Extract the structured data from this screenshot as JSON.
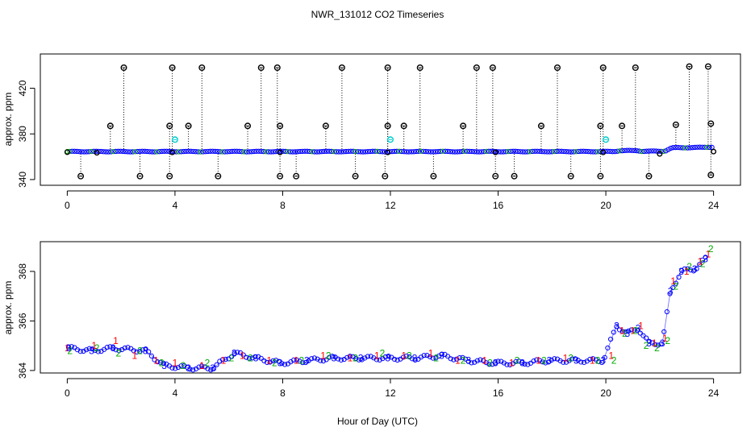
{
  "title": "NWR_131012  CO2 Timeseries",
  "shared_xlabel": "Hour of Day (UTC)",
  "colors": {
    "outlier": "#000000",
    "flag": "#00cccc",
    "ch1": "#ff0000",
    "ch2": "#00aa00",
    "ch3": "#0000ff",
    "box": "#000000"
  },
  "chart_data": [
    {
      "id": "top",
      "type": "scatter",
      "title": "NWR_131012  CO2 Timeseries",
      "xlabel": "",
      "ylabel": "approx. ppm",
      "xlim": [
        -1.0,
        25.0
      ],
      "ylim": [
        335,
        450
      ],
      "xticks": [
        0,
        4,
        8,
        12,
        16,
        20,
        24
      ],
      "xtick_labels": [
        "0",
        "4",
        "8",
        "12",
        "16",
        "20",
        "24"
      ],
      "yticks": [
        340,
        380,
        420
      ],
      "ytick_labels": [
        "340",
        "380",
        "420"
      ],
      "baseline": [
        [
          0,
          364.7
        ],
        [
          20.3,
          364.7
        ],
        [
          20.5,
          365.5
        ],
        [
          21.2,
          365.5
        ],
        [
          21.3,
          365.0
        ],
        [
          22.0,
          365.0
        ],
        [
          22.2,
          365.2
        ],
        [
          22.4,
          367.5
        ],
        [
          22.5,
          368.0
        ],
        [
          23.5,
          368.3
        ],
        [
          23.9,
          368.6
        ]
      ],
      "outliers_high": [
        [
          2.1,
          438
        ],
        [
          3.9,
          438
        ],
        [
          5.0,
          438
        ],
        [
          7.2,
          438
        ],
        [
          7.8,
          438
        ],
        [
          10.2,
          438
        ],
        [
          11.9,
          438
        ],
        [
          13.1,
          438
        ],
        [
          15.2,
          438
        ],
        [
          15.8,
          438
        ],
        [
          18.2,
          438
        ],
        [
          19.9,
          438
        ],
        [
          21.1,
          438
        ],
        [
          23.1,
          439
        ],
        [
          23.8,
          439
        ]
      ],
      "outliers_mid": [
        [
          1.6,
          387
        ],
        [
          3.8,
          387
        ],
        [
          4.5,
          387
        ],
        [
          6.7,
          387
        ],
        [
          7.9,
          387
        ],
        [
          9.6,
          387
        ],
        [
          11.9,
          387
        ],
        [
          12.5,
          387
        ],
        [
          14.7,
          387
        ],
        [
          17.6,
          387
        ],
        [
          19.8,
          387
        ],
        [
          20.6,
          387
        ],
        [
          22.6,
          388
        ],
        [
          23.9,
          389
        ]
      ],
      "outliers_low": [
        [
          0.5,
          343
        ],
        [
          2.7,
          343
        ],
        [
          3.8,
          343
        ],
        [
          5.6,
          343
        ],
        [
          7.9,
          343
        ],
        [
          8.5,
          343
        ],
        [
          10.7,
          343
        ],
        [
          11.8,
          343
        ],
        [
          13.6,
          343
        ],
        [
          15.9,
          343
        ],
        [
          16.6,
          343
        ],
        [
          18.7,
          343
        ],
        [
          19.8,
          343
        ],
        [
          21.6,
          343
        ],
        [
          23.9,
          344
        ]
      ],
      "flagged": [
        [
          4.0,
          375
        ],
        [
          12.0,
          375
        ],
        [
          20.0,
          375
        ]
      ],
      "dark_markers": [
        [
          0.0,
          364
        ],
        [
          1.1,
          363.5
        ],
        [
          3.9,
          363.8
        ],
        [
          7.9,
          363.8
        ],
        [
          11.9,
          363.8
        ],
        [
          15.9,
          363.8
        ],
        [
          19.9,
          363.8
        ],
        [
          22.0,
          362.5
        ],
        [
          24.0,
          364.5
        ]
      ]
    },
    {
      "id": "bottom",
      "type": "scatter",
      "title": "",
      "xlabel": "Hour of Day (UTC)",
      "ylabel": "approx. ppm",
      "xlim": [
        -1.0,
        25.0
      ],
      "ylim": [
        363.9,
        369.2
      ],
      "xticks": [
        0,
        4,
        8,
        12,
        16,
        20,
        24
      ],
      "xtick_labels": [
        "0",
        "4",
        "8",
        "12",
        "16",
        "20",
        "24"
      ],
      "yticks": [
        364,
        366,
        368
      ],
      "ytick_labels": [
        "364",
        "366",
        "368"
      ],
      "series": [
        {
          "name": "1",
          "values": [
            [
              0.0,
              364.9
            ],
            [
              1.0,
              365.0
            ],
            [
              1.8,
              365.2
            ],
            [
              2.5,
              364.6
            ],
            [
              3.3,
              364.4
            ],
            [
              4.0,
              364.3
            ],
            [
              5.0,
              364.2
            ],
            [
              5.8,
              364.4
            ],
            [
              6.5,
              364.6
            ],
            [
              7.5,
              364.4
            ],
            [
              8.5,
              364.4
            ],
            [
              9.5,
              364.6
            ],
            [
              10.5,
              364.5
            ],
            [
              11.5,
              364.6
            ],
            [
              12.5,
              364.6
            ],
            [
              13.5,
              364.7
            ],
            [
              14.5,
              364.4
            ],
            [
              15.5,
              364.4
            ],
            [
              16.5,
              364.3
            ],
            [
              17.5,
              364.4
            ],
            [
              18.5,
              364.5
            ],
            [
              19.5,
              364.4
            ],
            [
              20.2,
              364.6
            ],
            [
              20.6,
              365.6
            ],
            [
              21.0,
              365.6
            ],
            [
              21.3,
              365.8
            ],
            [
              21.8,
              365.1
            ],
            [
              22.2,
              365.3
            ],
            [
              22.5,
              367.6
            ],
            [
              23.0,
              368.0
            ],
            [
              23.5,
              368.4
            ],
            [
              23.8,
              368.7
            ]
          ]
        },
        {
          "name": "2",
          "values": [
            [
              0.1,
              364.8
            ],
            [
              1.1,
              364.9
            ],
            [
              1.9,
              364.7
            ],
            [
              2.7,
              364.8
            ],
            [
              3.5,
              364.3
            ],
            [
              4.3,
              364.2
            ],
            [
              5.2,
              364.3
            ],
            [
              6.1,
              364.5
            ],
            [
              6.8,
              364.5
            ],
            [
              7.7,
              364.3
            ],
            [
              8.7,
              364.4
            ],
            [
              9.7,
              364.6
            ],
            [
              10.7,
              364.5
            ],
            [
              11.7,
              364.7
            ],
            [
              12.7,
              364.6
            ],
            [
              13.7,
              364.5
            ],
            [
              14.7,
              364.4
            ],
            [
              15.7,
              364.3
            ],
            [
              16.7,
              364.4
            ],
            [
              17.7,
              364.4
            ],
            [
              18.7,
              364.5
            ],
            [
              19.7,
              364.4
            ],
            [
              20.3,
              364.4
            ],
            [
              20.7,
              365.5
            ],
            [
              21.1,
              365.6
            ],
            [
              21.5,
              365.0
            ],
            [
              21.9,
              364.9
            ],
            [
              22.3,
              365.2
            ],
            [
              22.6,
              367.4
            ],
            [
              23.1,
              368.2
            ],
            [
              23.6,
              368.3
            ],
            [
              23.9,
              368.9
            ]
          ]
        },
        {
          "name": "3",
          "values": [
            [
              0.05,
              364.9
            ],
            [
              0.9,
              364.8
            ],
            [
              1.7,
              364.9
            ],
            [
              2.9,
              364.8
            ],
            [
              3.6,
              364.2
            ],
            [
              4.5,
              364.1
            ],
            [
              5.4,
              364.1
            ],
            [
              6.2,
              364.7
            ],
            [
              7.0,
              364.5
            ],
            [
              7.9,
              364.3
            ],
            [
              8.9,
              364.4
            ],
            [
              9.9,
              364.5
            ],
            [
              10.9,
              364.5
            ],
            [
              11.9,
              364.5
            ],
            [
              12.9,
              364.5
            ],
            [
              13.9,
              364.6
            ],
            [
              14.9,
              364.4
            ],
            [
              15.9,
              364.3
            ],
            [
              16.9,
              364.3
            ],
            [
              17.9,
              364.4
            ],
            [
              18.9,
              364.4
            ],
            [
              19.9,
              364.4
            ],
            [
              20.4,
              365.8
            ],
            [
              20.8,
              365.5
            ],
            [
              21.2,
              365.7
            ],
            [
              21.6,
              365.1
            ],
            [
              22.1,
              365.1
            ],
            [
              22.4,
              367.2
            ],
            [
              22.8,
              368.0
            ],
            [
              23.3,
              368.1
            ],
            [
              23.7,
              368.5
            ]
          ]
        }
      ]
    }
  ]
}
